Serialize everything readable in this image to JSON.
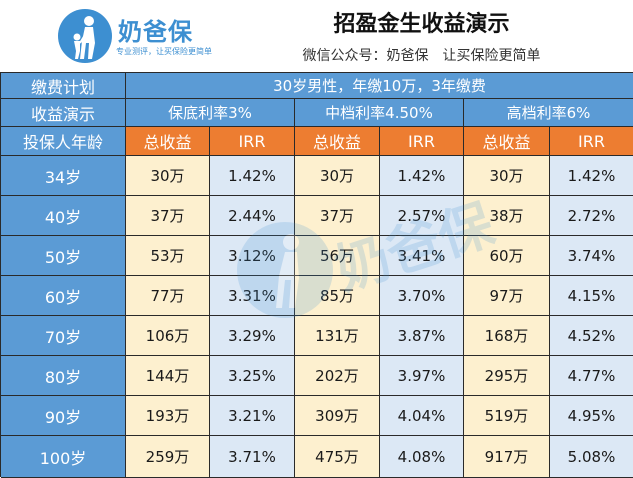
{
  "brand": {
    "name": "奶爸保",
    "slogan": "专业测评，让买保险更简单"
  },
  "header": {
    "title": "招盈金生收益演示",
    "subtitle": "微信公众号：奶爸保　让买保险更简单"
  },
  "table": {
    "plan_label": "缴费计划",
    "plan_value": "30岁男性，年缴10万，3年缴费",
    "scenario_label": "收益演示",
    "scenarios": [
      "保底利率3%",
      "中档利率4.50%",
      "高档利率6%"
    ],
    "age_label": "投保人年龄",
    "col_headers": [
      "总收益",
      "IRR",
      "总收益",
      "IRR",
      "总收益",
      "IRR"
    ],
    "rows": [
      {
        "age": "34岁",
        "cells": [
          "30万",
          "1.42%",
          "30万",
          "1.42%",
          "30万",
          "1.42%"
        ]
      },
      {
        "age": "40岁",
        "cells": [
          "37万",
          "2.44%",
          "37万",
          "2.57%",
          "38万",
          "2.72%"
        ]
      },
      {
        "age": "50岁",
        "cells": [
          "53万",
          "3.12%",
          "56万",
          "3.41%",
          "60万",
          "3.74%"
        ]
      },
      {
        "age": "60岁",
        "cells": [
          "77万",
          "3.31%",
          "85万",
          "3.70%",
          "97万",
          "4.15%"
        ]
      },
      {
        "age": "70岁",
        "cells": [
          "106万",
          "3.29%",
          "131万",
          "3.87%",
          "168万",
          "4.52%"
        ]
      },
      {
        "age": "80岁",
        "cells": [
          "144万",
          "3.25%",
          "202万",
          "3.97%",
          "295万",
          "4.77%"
        ]
      },
      {
        "age": "90岁",
        "cells": [
          "193万",
          "3.21%",
          "309万",
          "4.04%",
          "519万",
          "4.95%"
        ]
      },
      {
        "age": "100岁",
        "cells": [
          "259万",
          "3.71%",
          "475万",
          "4.08%",
          "917万",
          "5.08%"
        ]
      }
    ]
  },
  "colors": {
    "header_blue": "#5b9bd5",
    "orange": "#ed7d31",
    "cream": "#fdf0cf",
    "pale_blue": "#dce8f5",
    "brand_blue": "#3d8fd1"
  }
}
